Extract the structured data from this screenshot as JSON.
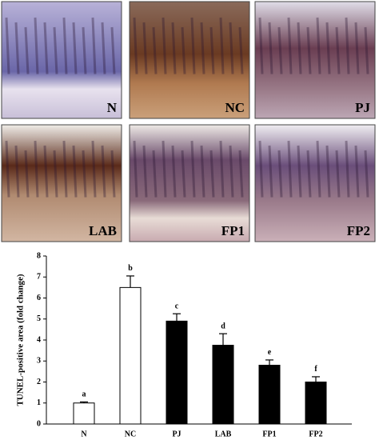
{
  "panels": [
    {
      "label": "N"
    },
    {
      "label": "NC"
    },
    {
      "label": "PJ"
    },
    {
      "label": "LAB"
    },
    {
      "label": "FP1"
    },
    {
      "label": "FP2"
    }
  ],
  "chart_data": {
    "type": "bar",
    "y_label": "TUNEL-positive area (fold change)",
    "categories": [
      "N",
      "NC",
      "PJ",
      "LAB",
      "FP1",
      "FP2"
    ],
    "values": [
      1.0,
      6.5,
      4.9,
      3.75,
      2.8,
      2.0
    ],
    "errors": [
      0.05,
      0.55,
      0.35,
      0.55,
      0.25,
      0.25
    ],
    "annotations": [
      "a",
      "b",
      "c",
      "d",
      "e",
      "f"
    ],
    "colors": [
      "#ffffff",
      "#ffffff",
      "#000000",
      "#000000",
      "#000000",
      "#000000"
    ],
    "ylim": [
      0,
      8
    ],
    "yticks": [
      0,
      1,
      2,
      3,
      4,
      5,
      6,
      7,
      8
    ]
  }
}
